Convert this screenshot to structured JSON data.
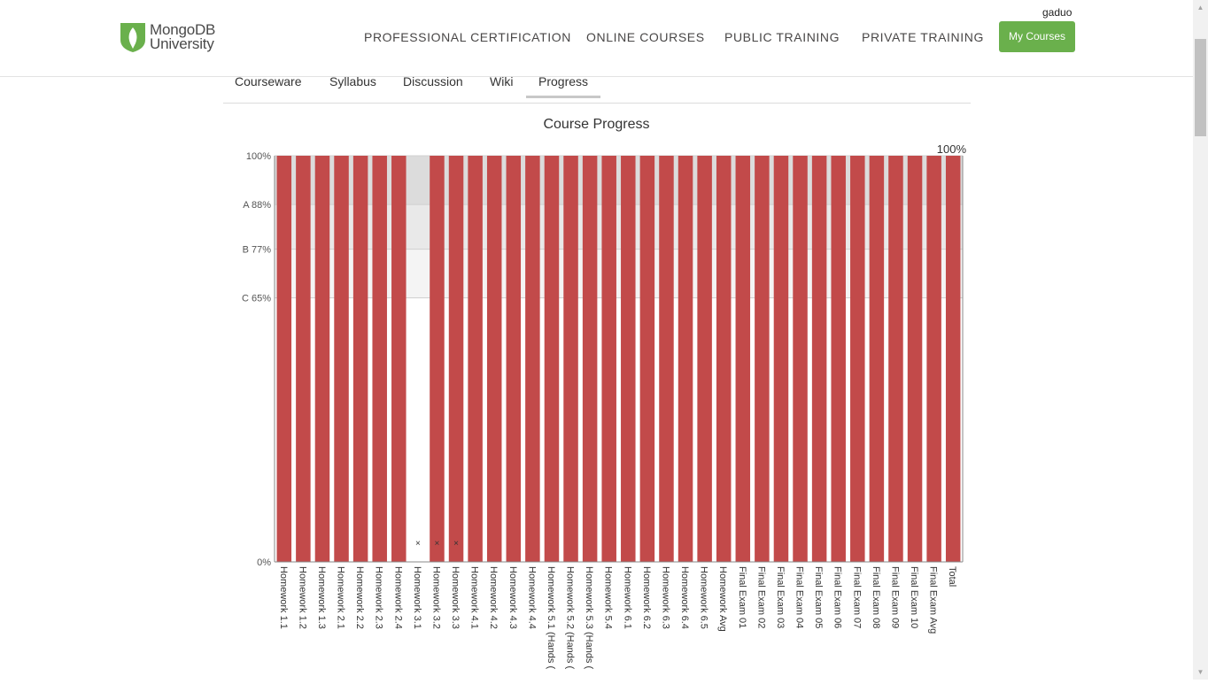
{
  "header": {
    "logo_line1": "MongoDB",
    "logo_line2": "University",
    "nav": [
      "PROFESSIONAL CERTIFICATION",
      "ONLINE COURSES",
      "PUBLIC TRAINING",
      "PRIVATE TRAINING"
    ],
    "my_courses": "My Courses",
    "username": "gaduo"
  },
  "tabs": [
    "Courseware",
    "Syllabus",
    "Discussion",
    "Wiki",
    "Progress"
  ],
  "active_tab": "Progress",
  "colors": {
    "bar": "#c24a4a",
    "brand_green": "#6ab04c",
    "grade_band_a": "#dcdcdc",
    "grade_band_b": "#e9e9e9",
    "grade_band_c": "#f4f4f4"
  },
  "chart_data": {
    "type": "bar",
    "title": "Course Progress",
    "ylim": [
      0,
      100
    ],
    "y_ticks": [
      {
        "value": 100,
        "label": "100%"
      },
      {
        "value": 88,
        "label": "A 88%"
      },
      {
        "value": 77,
        "label": "B 77%"
      },
      {
        "value": 65,
        "label": "C 65%"
      },
      {
        "value": 0,
        "label": "0%"
      }
    ],
    "categories": [
      "Homework 1.1",
      "Homework 1.2",
      "Homework 1.3",
      "Homework 2.1",
      "Homework 2.2",
      "Homework 2.3",
      "Homework 2.4",
      "Homework 3.1",
      "Homework 3.2",
      "Homework 3.3",
      "Homework 4.1",
      "Homework 4.2",
      "Homework 4.3",
      "Homework 4.4",
      "Homework 5.1 (Hands (",
      "Homework 5.2 (Hands (",
      "Homework 5.3 (Hands (",
      "Homework 5.4",
      "Homework 6.1",
      "Homework 6.2",
      "Homework 6.3",
      "Homework 6.4",
      "Homework 6.5",
      "Homework Avg",
      "Final Exam 01",
      "Final Exam 02",
      "Final Exam 03",
      "Final Exam 04",
      "Final Exam 05",
      "Final Exam 06",
      "Final Exam 07",
      "Final Exam 08",
      "Final Exam 09",
      "Final Exam 10",
      "Final Exam Avg",
      "Total"
    ],
    "values": [
      100,
      100,
      100,
      100,
      100,
      100,
      100,
      0,
      100,
      100,
      100,
      100,
      100,
      100,
      100,
      100,
      100,
      100,
      100,
      100,
      100,
      100,
      100,
      100,
      100,
      100,
      100,
      100,
      100,
      100,
      100,
      100,
      100,
      100,
      100,
      100
    ],
    "dropped": [
      "Homework 3.1",
      "Homework 3.2",
      "Homework 3.3"
    ],
    "total_label": "100%",
    "grid": true
  }
}
